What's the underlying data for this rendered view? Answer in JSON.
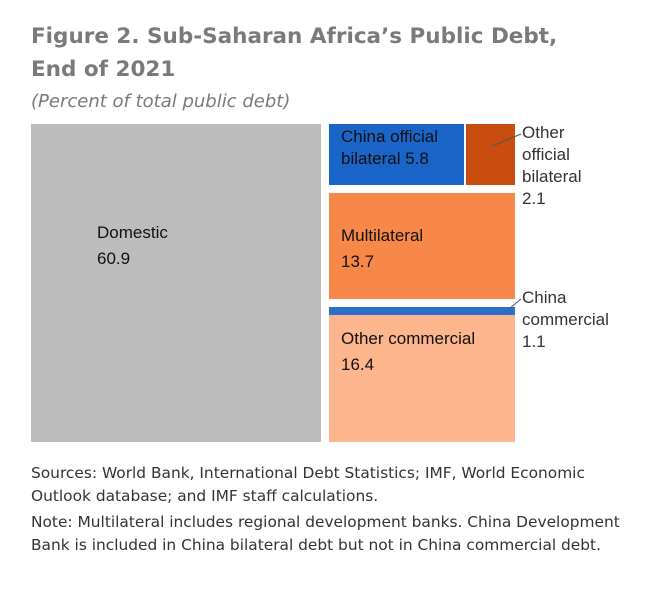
{
  "chart_data": {
    "type": "treemap",
    "title_line1": "Figure 2. Sub-Saharan Africa’s Public Debt,",
    "title_line2": "End of 2021",
    "subtitle": "(Percent of total public debt)",
    "unit": "Percent of total public debt",
    "segments": [
      {
        "id": "domestic",
        "label": "Domestic",
        "value": 60.9,
        "value_label": "60.9",
        "color": "#bcbcbc"
      },
      {
        "id": "china-official-bilateral",
        "label_lines": [
          "China official",
          "bilateral 5.8"
        ],
        "value": 5.8,
        "color": "#1b65c8"
      },
      {
        "id": "other-official-bilateral",
        "label_lines": [
          "Other",
          "official",
          "bilateral",
          "2.1"
        ],
        "value": 2.1,
        "color": "#c84d0f"
      },
      {
        "id": "multilateral",
        "label": "Multilateral",
        "value": 13.7,
        "value_label": "13.7",
        "color": "#f8874a"
      },
      {
        "id": "china-commercial",
        "label_lines": [
          "China",
          "commercial",
          "1.1"
        ],
        "value": 1.1,
        "color": "#2b6fcb"
      },
      {
        "id": "other-commercial",
        "label": "Other commercial",
        "value": 16.4,
        "value_label": "16.4",
        "color": "#fcb58c"
      }
    ]
  },
  "notes": {
    "sources": "Sources: World Bank, International Debt Statistics; IMF, World Economic Outlook database; and IMF staff calculations.",
    "note": "Note: Multilateral includes regional development banks. China Development Bank is included in China bilateral debt but not in China commercial debt."
  }
}
